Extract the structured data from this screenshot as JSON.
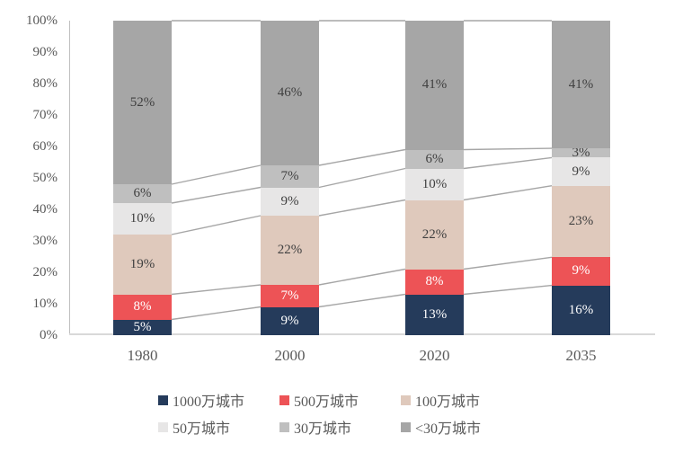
{
  "chart_data": {
    "type": "bar",
    "variant": "stacked-100-percent",
    "title": "",
    "xlabel": "",
    "ylabel": "",
    "ylim": [
      0,
      100
    ],
    "grid": false,
    "legend_position": "bottom",
    "categories": [
      "1980",
      "2000",
      "2020",
      "2035"
    ],
    "series": [
      {
        "name": "1000万城市",
        "color": "#253b5b",
        "label_color": "#ffffff",
        "values": [
          5,
          9,
          13,
          16
        ],
        "labels": [
          "5%",
          "9%",
          "13%",
          "16%"
        ]
      },
      {
        "name": "500万城市",
        "color": "#ed5356",
        "label_color": "#ffffff",
        "values": [
          8,
          7,
          8,
          9
        ],
        "labels": [
          "8%",
          "7%",
          "8%",
          "9%"
        ]
      },
      {
        "name": "100万城市",
        "color": "#dfc9bc",
        "label_color": "#404040",
        "values": [
          19,
          22,
          22,
          23
        ],
        "labels": [
          "19%",
          "22%",
          "22%",
          "23%"
        ]
      },
      {
        "name": "50万城市",
        "color": "#e7e6e6",
        "label_color": "#404040",
        "values": [
          10,
          9,
          10,
          9
        ],
        "labels": [
          "10%",
          "9%",
          "10%",
          "9%"
        ]
      },
      {
        "name": "30万城市",
        "color": "#bfbfbf",
        "label_color": "#404040",
        "values": [
          6,
          7,
          6,
          3
        ],
        "labels": [
          "6%",
          "7%",
          "6%",
          "3%"
        ]
      },
      {
        "name": "<30万城市",
        "color": "#a6a6a6",
        "label_color": "#404040",
        "values": [
          52,
          46,
          41,
          41
        ],
        "labels": [
          "52%",
          "46%",
          "41%",
          "41%"
        ]
      }
    ],
    "y_ticks": [
      "0%",
      "10%",
      "20%",
      "30%",
      "40%",
      "50%",
      "60%",
      "70%",
      "80%",
      "90%",
      "100%"
    ],
    "connector_lines": true,
    "connector_color": "#a6a6a6",
    "y_axis_color": "#bfbfbf",
    "x_axis_color": "#d9d9d9",
    "tick_label_color": "#595959",
    "legend_rows": [
      [
        "1000万城市",
        "500万城市",
        "100万城市"
      ],
      [
        "50万城市",
        "30万城市",
        "<30万城市"
      ]
    ]
  }
}
